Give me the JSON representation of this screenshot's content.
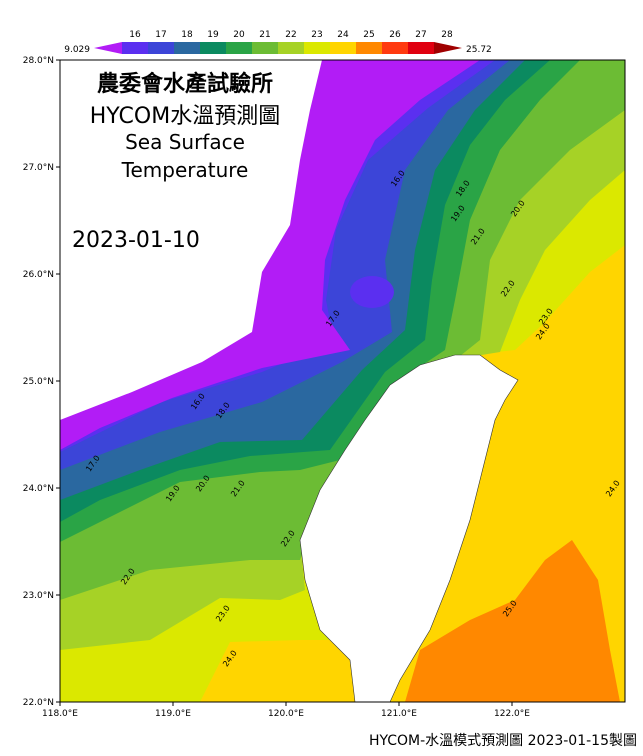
{
  "colorbar": {
    "min_label": "9.029",
    "max_label": "25.72",
    "ticks": [
      "16",
      "17",
      "18",
      "19",
      "20",
      "21",
      "22",
      "23",
      "24",
      "25",
      "26",
      "27",
      "28"
    ],
    "colors": [
      "#b21cf6",
      "#5b2ff0",
      "#3c45d8",
      "#2a68a0",
      "#0b8a60",
      "#2aa446",
      "#6cbc34",
      "#a6d226",
      "#dbe800",
      "#ffd500",
      "#ff8800",
      "#ff3a10",
      "#e00010",
      "#a00000"
    ]
  },
  "title": {
    "line1": "農委會水產試驗所",
    "line2": "HYCOM水溫預測圖",
    "line3": "Sea Surface",
    "line4": "Temperature",
    "date": "2023-01-10"
  },
  "axes": {
    "lat_labels": [
      "28.0°N",
      "27.0°N",
      "26.0°N",
      "25.0°N",
      "24.0°N",
      "23.0°N",
      "22.0°N"
    ],
    "lon_labels": [
      "118.0°E",
      "119.0°E",
      "120.0°E",
      "121.0°E",
      "122.0°E"
    ]
  },
  "contour_labels": [
    "16.0",
    "17.0",
    "18.0",
    "19.0",
    "20.0",
    "21.0",
    "22.0",
    "23.0",
    "24.0",
    "16.0",
    "18.0",
    "17.0",
    "19.0",
    "20.0",
    "21.0",
    "22.0",
    "22.0",
    "23.0",
    "24.0",
    "24.0",
    "25.0"
  ],
  "footer": "HYCOM-水溫模式預測圖 2023-01-15製圖"
}
